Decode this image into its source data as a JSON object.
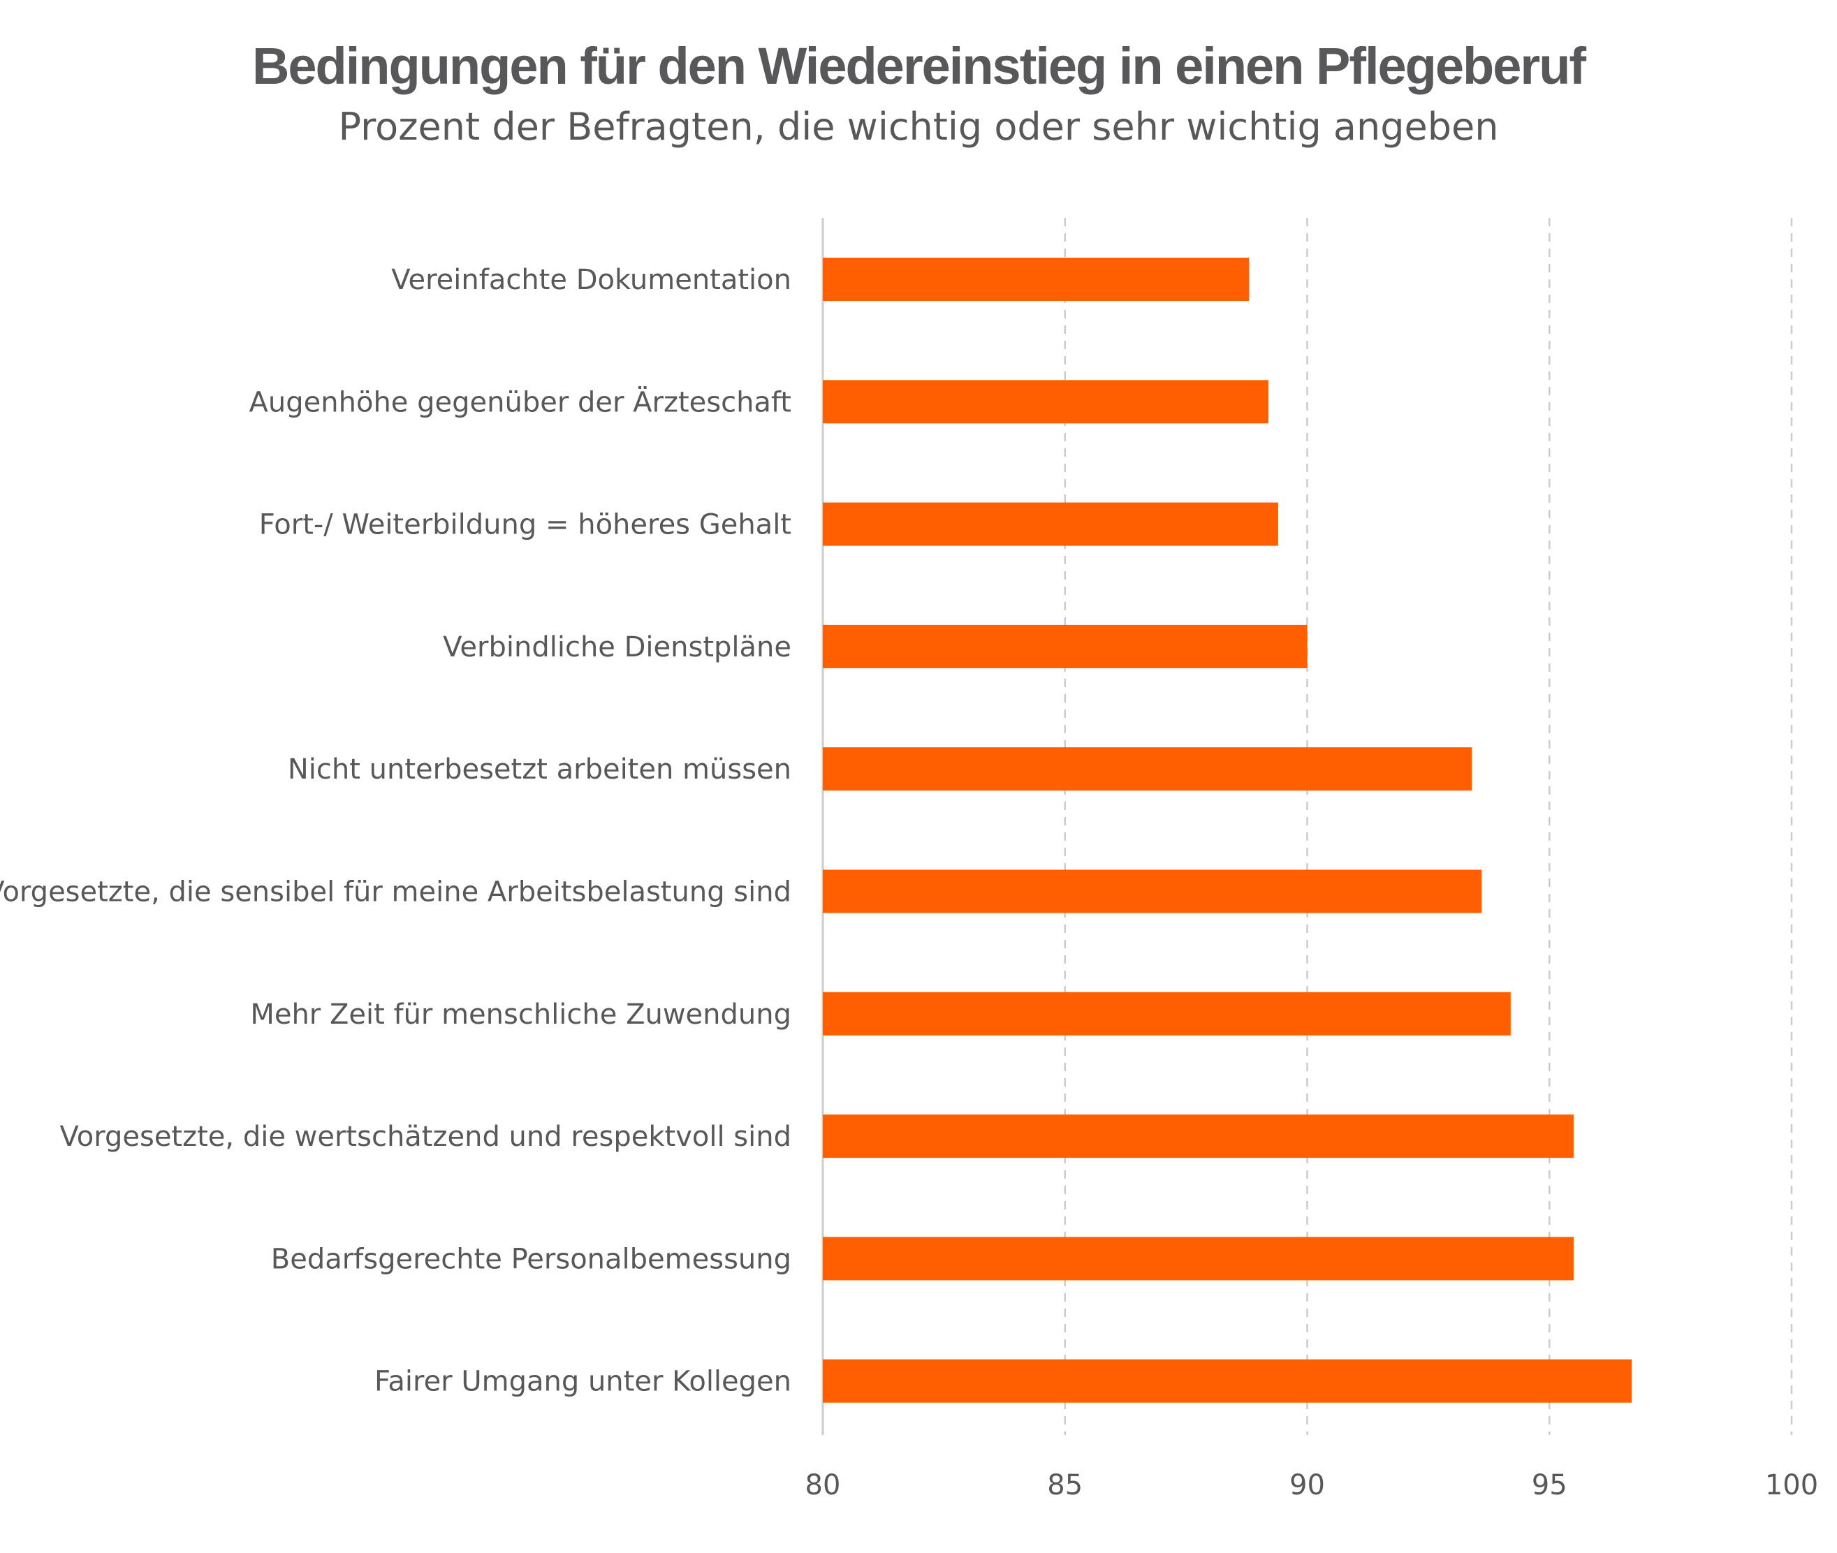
{
  "chart_data": {
    "type": "bar",
    "orientation": "horizontal",
    "title": "Bedingungen für den Wiedereinstieg in einen Pflegeberuf",
    "subtitle": "Prozent der Befragten, die wichtig oder sehr wichtig angeben",
    "categories": [
      "Vereinfachte Dokumentation",
      "Augenhöhe gegenüber der Ärzteschaft",
      "Fort-/ Weiterbildung = höheres Gehalt",
      "Verbindliche Dienstpläne",
      "Nicht unterbesetzt arbeiten müssen",
      "Vorgesetzte, die sensibel für meine Arbeitsbelastung sind",
      "Mehr Zeit für menschliche Zuwendung",
      "Vorgesetzte, die wertschätzend und respektvoll sind",
      "Bedarfsgerechte Personalbemessung",
      "Fairer Umgang unter Kollegen"
    ],
    "values": [
      88.8,
      89.2,
      89.4,
      90.0,
      93.4,
      93.6,
      94.2,
      95.5,
      95.5,
      96.7
    ],
    "xlim": [
      80,
      100
    ],
    "xticks": [
      "80",
      "85",
      "90",
      "95",
      "100"
    ],
    "grid": "vertical dashed",
    "legend": "none",
    "bar_color": "#ff5f00",
    "text_color": "#58585a",
    "grid_color": "#cccccc"
  }
}
